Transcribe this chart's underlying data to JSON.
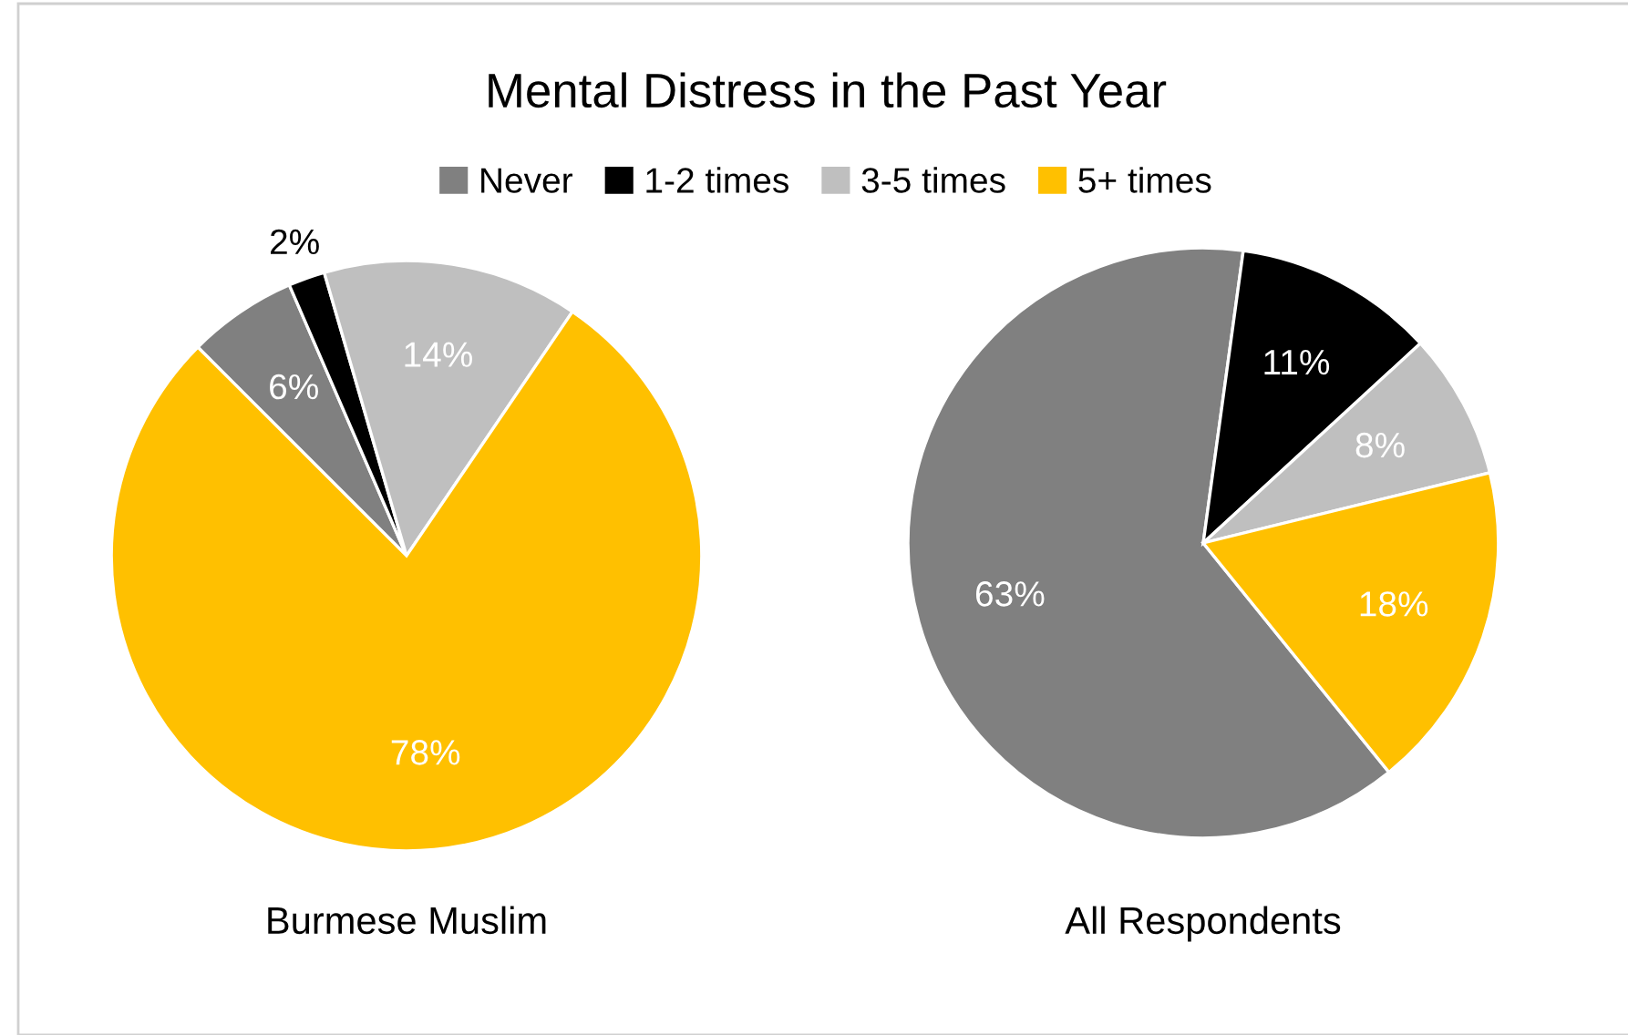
{
  "chart_data": [
    {
      "type": "pie",
      "title": "Mental Distress in the Past Year",
      "xlabel": "Burmese Muslim",
      "categories": [
        "Never",
        "1-2 times",
        "3-5 times",
        "5+ times"
      ],
      "values": [
        6,
        2,
        14,
        78
      ],
      "value_labels": [
        "6%",
        "2%",
        "14%",
        "78%"
      ],
      "colors": [
        "#808080",
        "#000000",
        "#bfbfbf",
        "#ffc000"
      ],
      "legend": "top"
    },
    {
      "type": "pie",
      "xlabel": "All Respondents",
      "categories": [
        null,
        null,
        null,
        null
      ],
      "values": [
        63,
        11,
        8,
        18
      ],
      "value_labels": [
        "63%",
        "11%",
        "8%",
        "18%"
      ],
      "colors": [
        "#808080",
        "#000000",
        "#bfbfbf",
        "#ffc000"
      ]
    }
  ]
}
